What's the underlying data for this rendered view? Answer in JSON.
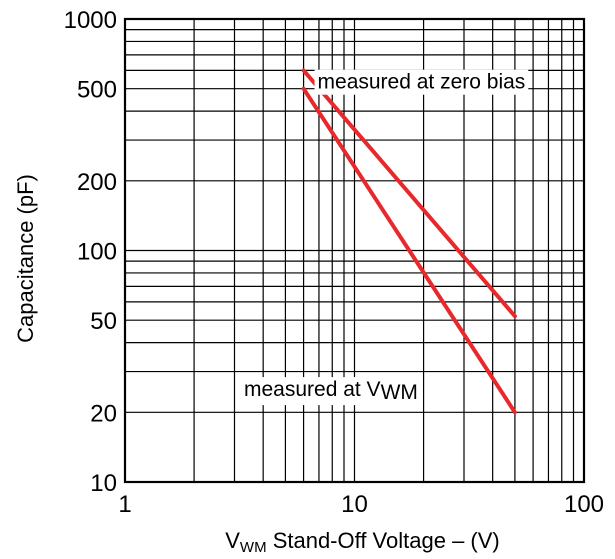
{
  "chart_data": {
    "type": "line",
    "title": "",
    "xlabel": {
      "main": "V",
      "subscript": "WM",
      "rest": " Stand-Off Voltage – (V)"
    },
    "ylabel": "Capacitance (pF)",
    "x_scale": "log",
    "y_scale": "log",
    "xlim": [
      1,
      100
    ],
    "ylim": [
      10,
      1000
    ],
    "grid": true,
    "x_ticks": [
      {
        "value": 1,
        "label": "1"
      },
      {
        "value": 10,
        "label": "10"
      },
      {
        "value": 100,
        "label": "100"
      }
    ],
    "y_ticks": [
      {
        "value": 10,
        "label": "10"
      },
      {
        "value": 20,
        "label": "20"
      },
      {
        "value": 50,
        "label": "50"
      },
      {
        "value": 100,
        "label": "100"
      },
      {
        "value": 200,
        "label": "200"
      },
      {
        "value": 500,
        "label": "500"
      },
      {
        "value": 1000,
        "label": "1000"
      }
    ],
    "series": [
      {
        "id": "zero-bias",
        "color": "#e8282a",
        "x": [
          6,
          50
        ],
        "y": [
          600,
          52
        ]
      },
      {
        "id": "at-vwm",
        "color": "#e8282a",
        "x": [
          6,
          50
        ],
        "y": [
          500,
          20
        ]
      }
    ],
    "annotations": [
      {
        "id": "zero-bias",
        "text": "measured at zero bias",
        "x": 6.9,
        "y": 500
      },
      {
        "id": "at-vwm",
        "main": "measured at V",
        "subscript": "WM",
        "x": 3.3,
        "y": 23.5
      }
    ]
  }
}
